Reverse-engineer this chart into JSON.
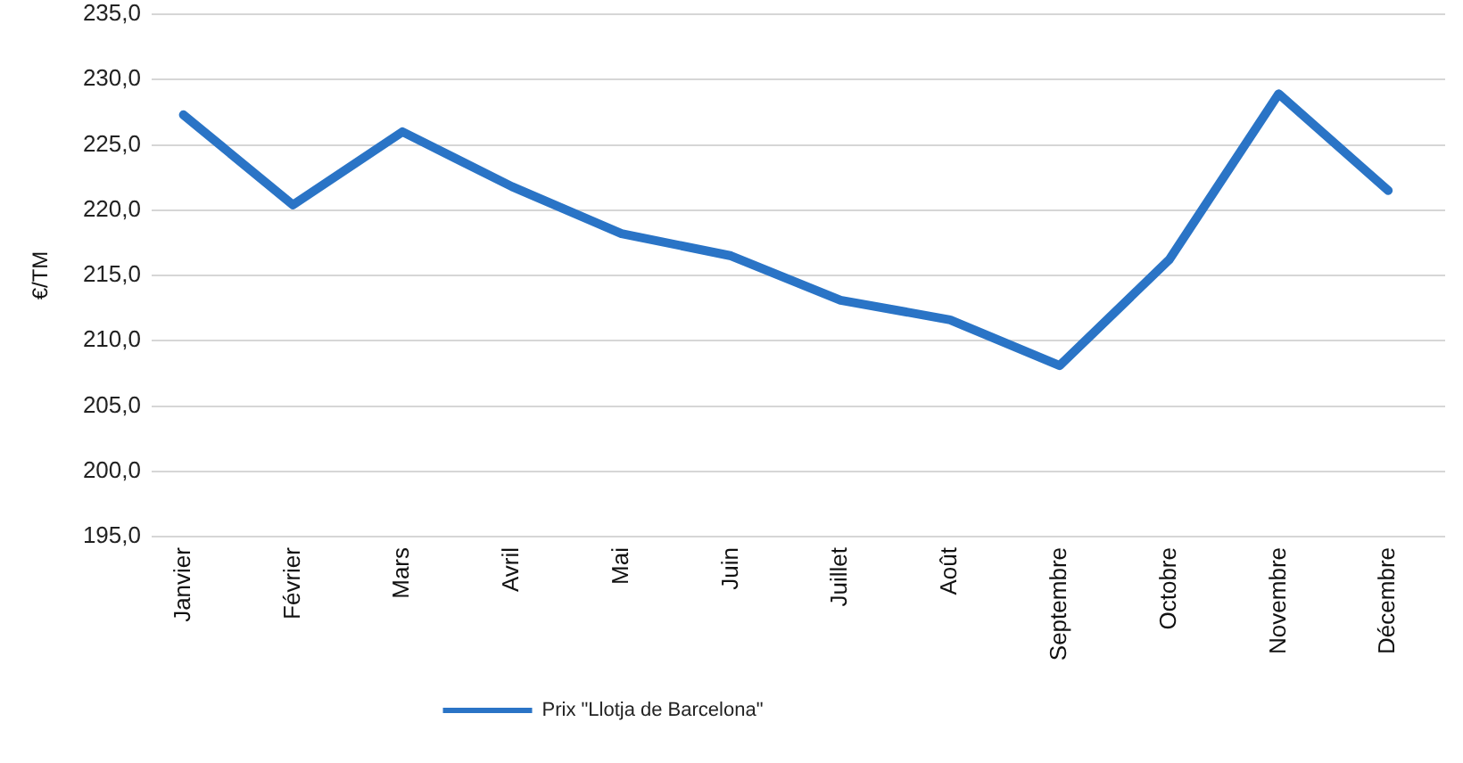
{
  "chart_data": {
    "type": "line",
    "ylabel": "€/TM",
    "categories": [
      "Janvier",
      "Février",
      "Mars",
      "Avril",
      "Mai",
      "Juin",
      "Juillet",
      "Août",
      "Septembre",
      "Octobre",
      "Novembre",
      "Décembre"
    ],
    "series": [
      {
        "name": "Prix \"Llotja de Barcelona\"",
        "color": "#2a74c6",
        "values": [
          227.3,
          220.4,
          226.0,
          221.8,
          218.2,
          216.5,
          213.1,
          211.6,
          208.1,
          216.2,
          228.9,
          221.5
        ]
      }
    ],
    "ylim": [
      195,
      235
    ],
    "yticks": [
      {
        "value": 195,
        "label": "195,0"
      },
      {
        "value": 200,
        "label": "200,0"
      },
      {
        "value": 205,
        "label": "205,0"
      },
      {
        "value": 210,
        "label": "210,0"
      },
      {
        "value": 215,
        "label": "215,0"
      },
      {
        "value": 220,
        "label": "220,0"
      },
      {
        "value": 225,
        "label": "225,0"
      },
      {
        "value": 230,
        "label": "230,0"
      },
      {
        "value": 235,
        "label": "235,0"
      }
    ],
    "grid": "y",
    "legend": "bottom",
    "marker": "none",
    "line_style": "solid"
  }
}
